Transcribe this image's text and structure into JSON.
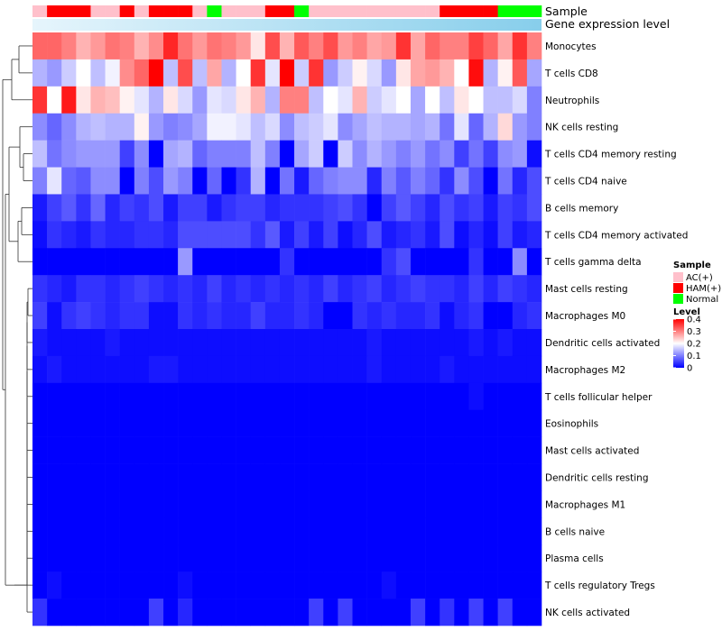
{
  "chart_data": {
    "type": "heatmap",
    "title": "",
    "annotation_labels": [
      "Sample",
      "Gene expression level"
    ],
    "rows": [
      "Monocytes",
      "T cells CD8",
      "Neutrophils",
      "NK cells resting",
      "T cells CD4 memory resting",
      "T cells CD4 naive",
      "B cells memory",
      "T cells CD4 memory activated",
      "T cells gamma delta",
      "Mast cells resting",
      "Macrophages M0",
      "Dendritic cells activated",
      "Macrophages M2",
      "T cells follicular helper",
      "Eosinophils",
      "Mast cells activated",
      "Dendritic cells resting",
      "Macrophages M1",
      "B cells naive",
      "Plasma cells",
      "T cells regulatory  Tregs",
      "NK cells activated"
    ],
    "sample_groups": [
      "AC",
      "HAM",
      "HAM",
      "HAM",
      "AC",
      "AC",
      "HAM",
      "AC",
      "HAM",
      "HAM",
      "HAM",
      "AC",
      "Normal",
      "AC",
      "AC",
      "AC",
      "HAM",
      "HAM",
      "Normal",
      "AC",
      "AC",
      "AC",
      "AC",
      "AC",
      "AC",
      "AC",
      "AC",
      "AC",
      "HAM",
      "HAM",
      "HAM",
      "HAM",
      "Normal",
      "Normal",
      "Normal"
    ],
    "values": [
      [
        0.32,
        0.32,
        0.3,
        0.26,
        0.28,
        0.31,
        0.3,
        0.26,
        0.29,
        0.37,
        0.31,
        0.28,
        0.31,
        0.3,
        0.28,
        0.22,
        0.34,
        0.26,
        0.33,
        0.3,
        0.34,
        0.28,
        0.3,
        0.27,
        0.28,
        0.36,
        0.27,
        0.32,
        0.3,
        0.3,
        0.35,
        0.32,
        0.27,
        0.36,
        0.3
      ],
      [
        0.14,
        0.12,
        0.16,
        0.2,
        0.15,
        0.19,
        0.29,
        0.32,
        0.4,
        0.15,
        0.34,
        0.15,
        0.27,
        0.14,
        0.2,
        0.36,
        0.18,
        0.4,
        0.16,
        0.36,
        0.12,
        0.16,
        0.21,
        0.17,
        0.12,
        0.22,
        0.27,
        0.28,
        0.26,
        0.2,
        0.39,
        0.14,
        0.21,
        0.33,
        0.13
      ],
      [
        0.36,
        0.2,
        0.38,
        0.22,
        0.26,
        0.25,
        0.21,
        0.18,
        0.14,
        0.22,
        0.17,
        0.12,
        0.18,
        0.17,
        0.22,
        0.26,
        0.14,
        0.3,
        0.3,
        0.15,
        0.2,
        0.18,
        0.26,
        0.16,
        0.18,
        0.2,
        0.13,
        0.2,
        0.15,
        0.22,
        0.2,
        0.15,
        0.15,
        0.17,
        0.1
      ],
      [
        0.11,
        0.08,
        0.11,
        0.14,
        0.15,
        0.14,
        0.14,
        0.21,
        0.12,
        0.1,
        0.11,
        0.13,
        0.19,
        0.19,
        0.18,
        0.15,
        0.17,
        0.11,
        0.15,
        0.16,
        0.18,
        0.11,
        0.13,
        0.15,
        0.14,
        0.14,
        0.13,
        0.14,
        0.09,
        0.18,
        0.08,
        0.14,
        0.23,
        0.12,
        0.1
      ],
      [
        0.15,
        0.09,
        0.11,
        0.12,
        0.12,
        0.12,
        0.05,
        0.11,
        0.0,
        0.13,
        0.14,
        0.08,
        0.1,
        0.1,
        0.1,
        0.15,
        0.1,
        0.0,
        0.13,
        0.16,
        0.0,
        0.16,
        0.11,
        0.14,
        0.12,
        0.1,
        0.12,
        0.09,
        0.11,
        0.05,
        0.09,
        0.05,
        0.11,
        0.12,
        0.01
      ],
      [
        0.1,
        0.18,
        0.08,
        0.07,
        0.11,
        0.11,
        0.0,
        0.1,
        0.06,
        0.12,
        0.1,
        0.0,
        0.08,
        0.0,
        0.04,
        0.14,
        0.0,
        0.09,
        0.02,
        0.08,
        0.1,
        0.11,
        0.11,
        0.03,
        0.1,
        0.07,
        0.1,
        0.08,
        0.04,
        0.11,
        0.06,
        0.0,
        0.09,
        0.03,
        0.06
      ],
      [
        0.02,
        0.05,
        0.07,
        0.04,
        0.08,
        0.03,
        0.05,
        0.04,
        0.06,
        0.02,
        0.05,
        0.05,
        0.02,
        0.04,
        0.05,
        0.05,
        0.03,
        0.04,
        0.04,
        0.04,
        0.05,
        0.06,
        0.04,
        0.0,
        0.05,
        0.07,
        0.05,
        0.03,
        0.06,
        0.04,
        0.05,
        0.02,
        0.05,
        0.04,
        0.06
      ],
      [
        0.01,
        0.04,
        0.03,
        0.02,
        0.04,
        0.03,
        0.03,
        0.04,
        0.04,
        0.03,
        0.06,
        0.06,
        0.06,
        0.06,
        0.06,
        0.04,
        0.07,
        0.02,
        0.05,
        0.02,
        0.05,
        0.01,
        0.03,
        0.06,
        0.02,
        0.03,
        0.04,
        0.02,
        0.06,
        0.01,
        0.03,
        0.01,
        0.05,
        0.02,
        0.03
      ],
      [
        0.0,
        0.0,
        0.0,
        0.0,
        0.0,
        0.0,
        0.0,
        0.0,
        0.0,
        0.0,
        0.12,
        0.0,
        0.0,
        0.0,
        0.0,
        0.0,
        0.0,
        0.04,
        0.0,
        0.0,
        0.0,
        0.0,
        0.0,
        0.0,
        0.04,
        0.06,
        0.0,
        0.0,
        0.0,
        0.0,
        0.04,
        0.0,
        0.0,
        0.11,
        0.0
      ],
      [
        0.04,
        0.03,
        0.02,
        0.04,
        0.04,
        0.03,
        0.04,
        0.05,
        0.04,
        0.03,
        0.04,
        0.03,
        0.05,
        0.03,
        0.04,
        0.03,
        0.04,
        0.03,
        0.04,
        0.03,
        0.05,
        0.03,
        0.04,
        0.05,
        0.03,
        0.04,
        0.05,
        0.04,
        0.04,
        0.03,
        0.05,
        0.03,
        0.05,
        0.04,
        0.03
      ],
      [
        0.05,
        0.01,
        0.04,
        0.05,
        0.04,
        0.03,
        0.04,
        0.04,
        0.01,
        0.01,
        0.04,
        0.03,
        0.04,
        0.03,
        0.03,
        0.05,
        0.03,
        0.03,
        0.04,
        0.03,
        0.0,
        0.0,
        0.04,
        0.03,
        0.04,
        0.03,
        0.03,
        0.04,
        0.01,
        0.03,
        0.04,
        0.0,
        0.0,
        0.03,
        0.04
      ],
      [
        0.02,
        0.01,
        0.01,
        0.01,
        0.01,
        0.02,
        0.01,
        0.01,
        0.01,
        0.01,
        0.01,
        0.01,
        0.01,
        0.01,
        0.01,
        0.01,
        0.01,
        0.01,
        0.01,
        0.01,
        0.01,
        0.01,
        0.01,
        0.02,
        0.01,
        0.01,
        0.01,
        0.01,
        0.01,
        0.01,
        0.02,
        0.01,
        0.02,
        0.01,
        0.01
      ],
      [
        0.01,
        0.02,
        0.01,
        0.01,
        0.01,
        0.01,
        0.01,
        0.01,
        0.02,
        0.02,
        0.01,
        0.01,
        0.01,
        0.01,
        0.01,
        0.01,
        0.01,
        0.01,
        0.01,
        0.01,
        0.01,
        0.01,
        0.01,
        0.02,
        0.01,
        0.01,
        0.01,
        0.01,
        0.02,
        0.01,
        0.01,
        0.01,
        0.01,
        0.01,
        0.01
      ],
      [
        0.0,
        0.0,
        0.0,
        0.0,
        0.0,
        0.0,
        0.0,
        0.0,
        0.0,
        0.0,
        0.0,
        0.0,
        0.0,
        0.0,
        0.0,
        0.0,
        0.0,
        0.0,
        0.0,
        0.0,
        0.0,
        0.0,
        0.0,
        0.0,
        0.0,
        0.0,
        0.0,
        0.0,
        0.0,
        0.0,
        0.01,
        0.0,
        0.0,
        0.0,
        0.0
      ],
      [
        0.0,
        0.0,
        0.0,
        0.0,
        0.0,
        0.0,
        0.0,
        0.0,
        0.0,
        0.0,
        0.0,
        0.0,
        0.0,
        0.0,
        0.0,
        0.0,
        0.0,
        0.0,
        0.0,
        0.0,
        0.0,
        0.0,
        0.0,
        0.0,
        0.0,
        0.0,
        0.0,
        0.0,
        0.0,
        0.0,
        0.0,
        0.0,
        0.0,
        0.0,
        0.0
      ],
      [
        0.0,
        0.0,
        0.0,
        0.0,
        0.0,
        0.0,
        0.0,
        0.0,
        0.0,
        0.0,
        0.0,
        0.0,
        0.0,
        0.0,
        0.0,
        0.0,
        0.0,
        0.0,
        0.0,
        0.0,
        0.0,
        0.0,
        0.0,
        0.0,
        0.0,
        0.0,
        0.0,
        0.0,
        0.0,
        0.0,
        0.0,
        0.0,
        0.0,
        0.0,
        0.0
      ],
      [
        0.0,
        0.0,
        0.0,
        0.0,
        0.0,
        0.0,
        0.0,
        0.0,
        0.0,
        0.0,
        0.0,
        0.0,
        0.0,
        0.0,
        0.0,
        0.0,
        0.0,
        0.0,
        0.0,
        0.0,
        0.0,
        0.0,
        0.0,
        0.0,
        0.0,
        0.0,
        0.0,
        0.0,
        0.0,
        0.0,
        0.0,
        0.0,
        0.0,
        0.0,
        0.0
      ],
      [
        0.0,
        0.0,
        0.0,
        0.0,
        0.0,
        0.0,
        0.0,
        0.0,
        0.0,
        0.0,
        0.0,
        0.0,
        0.0,
        0.0,
        0.0,
        0.0,
        0.0,
        0.0,
        0.0,
        0.0,
        0.0,
        0.0,
        0.0,
        0.0,
        0.0,
        0.0,
        0.0,
        0.0,
        0.0,
        0.0,
        0.0,
        0.0,
        0.0,
        0.0,
        0.0
      ],
      [
        0.0,
        0.0,
        0.0,
        0.0,
        0.0,
        0.0,
        0.0,
        0.0,
        0.0,
        0.0,
        0.0,
        0.0,
        0.0,
        0.0,
        0.0,
        0.0,
        0.0,
        0.0,
        0.0,
        0.0,
        0.0,
        0.0,
        0.0,
        0.0,
        0.0,
        0.0,
        0.0,
        0.0,
        0.0,
        0.0,
        0.0,
        0.0,
        0.0,
        0.0,
        0.0
      ],
      [
        0.0,
        0.0,
        0.0,
        0.0,
        0.0,
        0.0,
        0.0,
        0.0,
        0.0,
        0.0,
        0.0,
        0.0,
        0.0,
        0.0,
        0.0,
        0.0,
        0.0,
        0.0,
        0.0,
        0.0,
        0.0,
        0.0,
        0.0,
        0.0,
        0.0,
        0.0,
        0.0,
        0.0,
        0.0,
        0.0,
        0.0,
        0.0,
        0.0,
        0.0,
        0.0
      ],
      [
        0.0,
        0.01,
        0.0,
        0.0,
        0.0,
        0.0,
        0.0,
        0.0,
        0.0,
        0.0,
        0.01,
        0.0,
        0.0,
        0.0,
        0.0,
        0.0,
        0.0,
        0.0,
        0.0,
        0.0,
        0.0,
        0.0,
        0.0,
        0.0,
        0.01,
        0.0,
        0.0,
        0.0,
        0.0,
        0.0,
        0.0,
        0.0,
        0.0,
        0.0,
        0.0
      ],
      [
        0.04,
        0.0,
        0.0,
        0.0,
        0.0,
        0.0,
        0.0,
        0.0,
        0.05,
        0.0,
        0.03,
        0.0,
        0.0,
        0.0,
        0.0,
        0.0,
        0.0,
        0.0,
        0.0,
        0.05,
        0.0,
        0.05,
        0.0,
        0.0,
        0.0,
        0.0,
        0.05,
        0.0,
        0.04,
        0.0,
        0.05,
        0.0,
        0.05,
        0.0,
        0.0
      ]
    ],
    "legend": {
      "sample_title": "Sample",
      "sample_entries": [
        {
          "label": "AC(+)",
          "color": "#FFC0CB"
        },
        {
          "label": "HAM(+)",
          "color": "#FF0000"
        },
        {
          "label": "Normal",
          "color": "#00FF00"
        }
      ],
      "level_title": "Level",
      "level_ticks": [
        "0.4",
        "0.3",
        "0.2",
        "0.1",
        "0"
      ],
      "level_range": [
        0,
        0.4
      ]
    },
    "colors": {
      "low": "#0000FF",
      "mid": "#FFFFFF",
      "high": "#FF0000",
      "expression_bar": "#87CEEB"
    }
  }
}
